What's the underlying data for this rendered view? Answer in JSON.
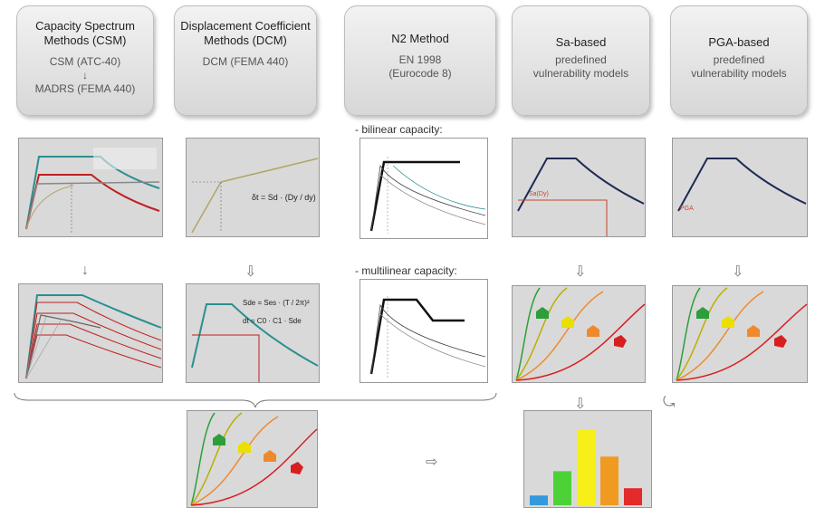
{
  "headers": [
    {
      "title": "Capacity Spectrum Methods (CSM)",
      "lines": [
        "CSM (ATC-40)",
        "↓",
        "MADRS (FEMA 440)"
      ]
    },
    {
      "title": "Displacement Coefficient Methods (DCM)",
      "lines": [
        "DCM (FEMA 440)"
      ]
    },
    {
      "title": "N2 Method",
      "lines": [
        "EN 1998",
        "(Eurocode 8)"
      ]
    },
    {
      "title": "Sa-based",
      "lines": [
        "predefined",
        "vulnerability models"
      ]
    },
    {
      "title": "PGA-based",
      "lines": [
        "predefined",
        "vulnerability models"
      ]
    }
  ],
  "notes": {
    "bilinear": "- bilinear capacity:",
    "multilinear": "- multilinear capacity:"
  },
  "formulas": {
    "dcm1": "δt = Sd · (Dy / dy)",
    "dcm2a": "Sde = Ses · (T / 2π)²",
    "dcm2b": "dt = C0 · C1 · Sde"
  },
  "plot_labels": {
    "sa_dy": "Sa(Dy)",
    "pga": "PGA"
  },
  "damage_colors": [
    "#2e9e3a",
    "#e9e000",
    "#ef8a2c",
    "#d81f1f"
  ],
  "bar_chart": {
    "colors": [
      "#3399dd",
      "#4cd137",
      "#f7ef18",
      "#f09a22",
      "#e32b2b"
    ],
    "values": [
      0.08,
      0.28,
      0.62,
      0.4,
      0.14
    ]
  }
}
